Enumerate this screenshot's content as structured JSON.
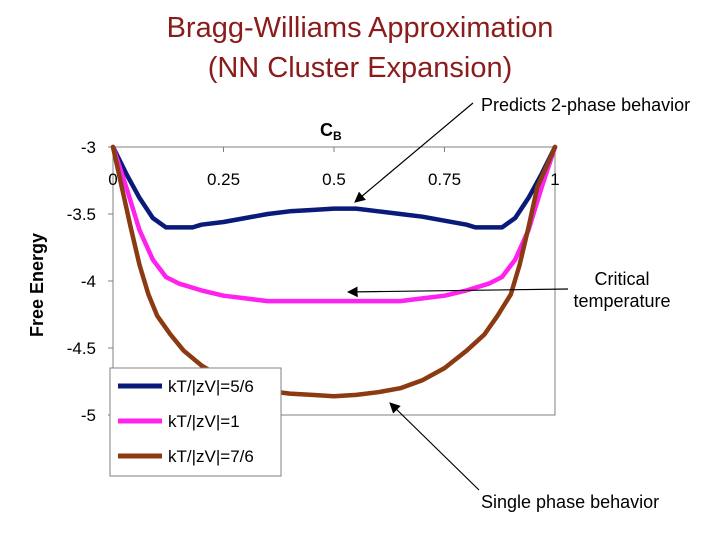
{
  "title": {
    "line1": "Bragg-Williams Approximation",
    "line2": "(NN Cluster Expansion)"
  },
  "annotations": {
    "two_phase": "Predicts 2-phase behavior",
    "critical_line1": "Critical",
    "critical_line2": "temperature",
    "single_phase": "Single phase behavior"
  },
  "chart_data": {
    "type": "line",
    "xlabel": "C",
    "xlabel_subscript": "B",
    "ylabel": "Free Energy",
    "xlim": [
      0,
      1
    ],
    "ylim": [
      -5,
      -3
    ],
    "x_ticks": [
      "0",
      "0.25",
      "0.5",
      "0.75",
      "1"
    ],
    "y_ticks": [
      "-3",
      "-3.5",
      "-4",
      "-4.5",
      "-5"
    ],
    "legend_position": "bottom-left",
    "series": [
      {
        "name": "kT/|zV|=5/6",
        "color": "#0a1a7a",
        "x": [
          0,
          0.03,
          0.06,
          0.09,
          0.12,
          0.15,
          0.18,
          0.2,
          0.25,
          0.3,
          0.35,
          0.4,
          0.45,
          0.5,
          0.55,
          0.6,
          0.65,
          0.7,
          0.75,
          0.8,
          0.82,
          0.85,
          0.88,
          0.91,
          0.94,
          0.97,
          1
        ],
        "y": [
          -3,
          -3.2,
          -3.38,
          -3.53,
          -3.6,
          -3.6,
          -3.6,
          -3.58,
          -3.56,
          -3.53,
          -3.5,
          -3.48,
          -3.47,
          -3.46,
          -3.46,
          -3.48,
          -3.5,
          -3.52,
          -3.55,
          -3.58,
          -3.6,
          -3.6,
          -3.6,
          -3.53,
          -3.38,
          -3.2,
          -3
        ]
      },
      {
        "name": "kT/|zV|=1",
        "color": "#ff22ee",
        "x": [
          0,
          0.03,
          0.06,
          0.09,
          0.12,
          0.15,
          0.2,
          0.25,
          0.3,
          0.35,
          0.4,
          0.5,
          0.6,
          0.65,
          0.7,
          0.75,
          0.8,
          0.85,
          0.88,
          0.91,
          0.94,
          0.97,
          1
        ],
        "y": [
          -3,
          -3.3,
          -3.62,
          -3.84,
          -3.97,
          -4.02,
          -4.07,
          -4.11,
          -4.13,
          -4.15,
          -4.15,
          -4.15,
          -4.15,
          -4.15,
          -4.13,
          -4.11,
          -4.07,
          -4.02,
          -3.97,
          -3.84,
          -3.62,
          -3.3,
          -3
        ]
      },
      {
        "name": "kT/|zV|=7/6",
        "color": "#8b3a12",
        "x": [
          0,
          0.02,
          0.04,
          0.06,
          0.08,
          0.1,
          0.13,
          0.16,
          0.2,
          0.25,
          0.3,
          0.35,
          0.4,
          0.45,
          0.5,
          0.55,
          0.6,
          0.65,
          0.7,
          0.75,
          0.8,
          0.84,
          0.87,
          0.9,
          0.92,
          0.94,
          0.96,
          0.98,
          1
        ],
        "y": [
          -3,
          -3.3,
          -3.6,
          -3.88,
          -4.1,
          -4.26,
          -4.4,
          -4.52,
          -4.63,
          -4.73,
          -4.79,
          -4.82,
          -4.84,
          -4.85,
          -4.86,
          -4.85,
          -4.83,
          -4.8,
          -4.74,
          -4.65,
          -4.52,
          -4.4,
          -4.26,
          -4.1,
          -3.88,
          -3.6,
          -3.3,
          -3.15,
          -3
        ]
      }
    ]
  }
}
